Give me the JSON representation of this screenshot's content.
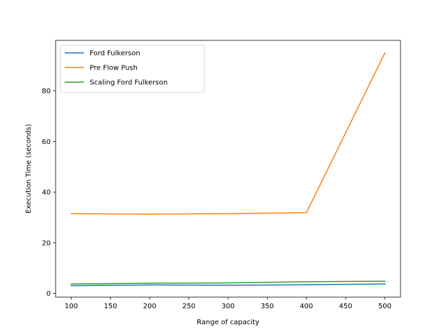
{
  "chart_data": {
    "type": "line",
    "title": "",
    "xlabel": "Range of capacity",
    "ylabel": "Execution Time (seconds)",
    "x": [
      100,
      200,
      300,
      400,
      500
    ],
    "xlim": [
      80,
      520
    ],
    "ylim": [
      -1.5,
      100
    ],
    "xticks": [
      100,
      150,
      200,
      250,
      300,
      350,
      400,
      450,
      500
    ],
    "yticks": [
      0,
      20,
      40,
      60,
      80
    ],
    "grid": false,
    "legend_position": "top-left",
    "series": [
      {
        "name": "Ford Fulkerson",
        "color": "#1f77b4",
        "values": [
          3.0,
          3.3,
          3.2,
          3.4,
          3.7
        ]
      },
      {
        "name": "Pre Flow Push",
        "color": "#ff7f0e",
        "values": [
          31.5,
          31.3,
          31.5,
          31.9,
          95.0
        ]
      },
      {
        "name": "Scaling Ford Fulkerson",
        "color": "#2ca02c",
        "values": [
          3.7,
          4.0,
          4.1,
          4.6,
          4.8
        ]
      }
    ]
  }
}
